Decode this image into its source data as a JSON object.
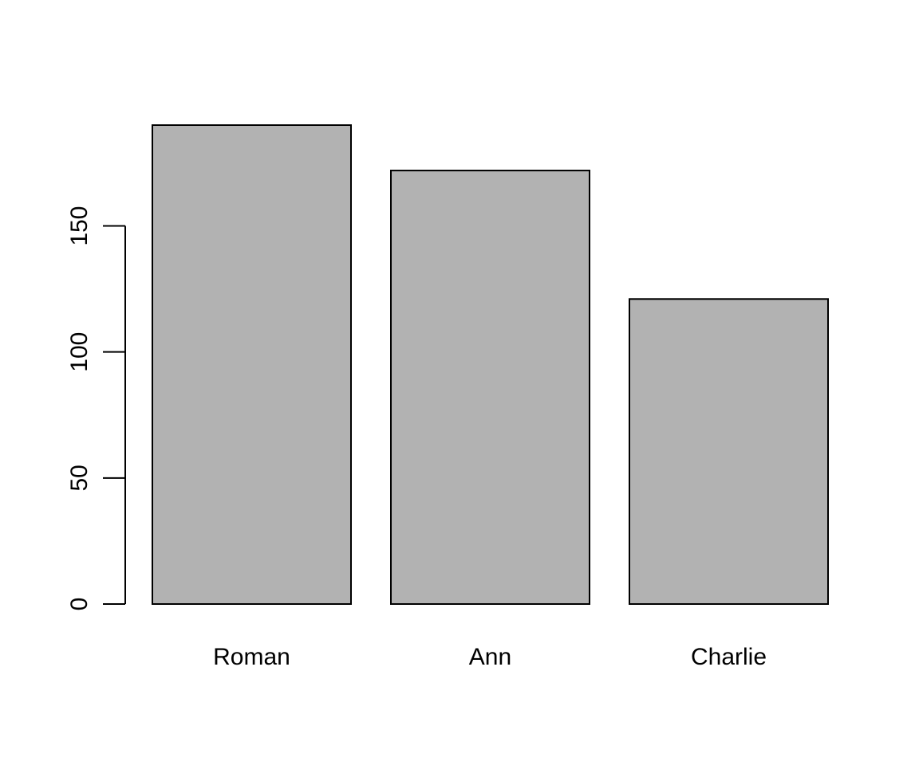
{
  "chart_data": {
    "type": "bar",
    "categories": [
      "Roman",
      "Ann",
      "Charlie"
    ],
    "values": [
      190,
      172,
      121
    ],
    "ylim": [
      0,
      190
    ],
    "yticks": [
      0,
      50,
      100,
      150
    ],
    "title": "",
    "xlabel": "",
    "ylabel": "",
    "grid": false,
    "bar_color": "#b2b2b2",
    "bar_edge_color": "#000000"
  }
}
